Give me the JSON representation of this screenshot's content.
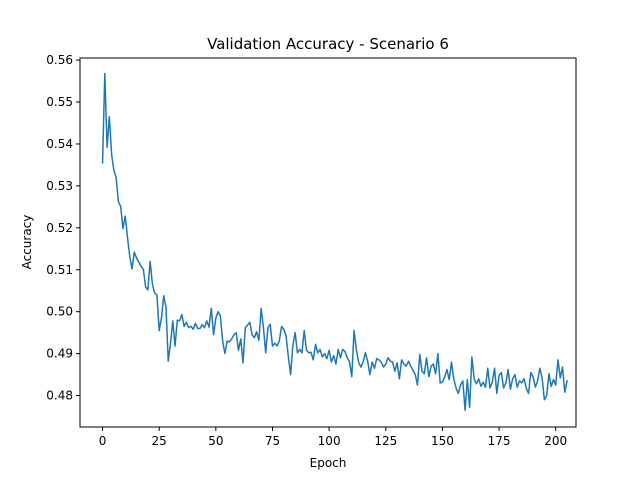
{
  "chart_data": {
    "type": "line",
    "title": "Validation Accuracy - Scenario 6",
    "xlabel": "Epoch",
    "ylabel": "Accuracy",
    "xlim": [
      -9.95,
      208.95
    ],
    "ylim": [
      0.4725,
      0.5605
    ],
    "xticks": [
      0,
      25,
      50,
      75,
      100,
      125,
      150,
      175,
      200
    ],
    "yticks": [
      0.48,
      0.49,
      0.5,
      0.51,
      0.52,
      0.53,
      0.54,
      0.55,
      0.56
    ],
    "ytick_labels": [
      "0.48",
      "0.49",
      "0.50",
      "0.51",
      "0.52",
      "0.53",
      "0.54",
      "0.55",
      "0.56"
    ],
    "grid": false,
    "series": [
      {
        "color": "#1f77b4",
        "x_start": 0,
        "x_step": 1,
        "values": [
          0.5355,
          0.5568,
          0.5392,
          0.5465,
          0.5375,
          0.5338,
          0.532,
          0.5262,
          0.5251,
          0.5198,
          0.5228,
          0.5178,
          0.5132,
          0.5102,
          0.5142,
          0.5128,
          0.5118,
          0.5108,
          0.5101,
          0.5059,
          0.5052,
          0.512,
          0.5066,
          0.5045,
          0.504,
          0.4955,
          0.4985,
          0.5038,
          0.501,
          0.4882,
          0.4925,
          0.4978,
          0.4918,
          0.498,
          0.4978,
          0.4993,
          0.4965,
          0.4975,
          0.4962,
          0.4965,
          0.4958,
          0.4972,
          0.496,
          0.496,
          0.4969,
          0.4962,
          0.4978,
          0.4963,
          0.5008,
          0.4945,
          0.4985,
          0.5,
          0.499,
          0.493,
          0.49,
          0.493,
          0.4928,
          0.4935,
          0.4945,
          0.495,
          0.4908,
          0.4935,
          0.4878,
          0.4962,
          0.4968,
          0.4975,
          0.4945,
          0.4938,
          0.4952,
          0.4932,
          0.5008,
          0.4962,
          0.4902,
          0.4962,
          0.497,
          0.4918,
          0.4925,
          0.4918,
          0.493,
          0.4965,
          0.4958,
          0.4942,
          0.4893,
          0.485,
          0.492,
          0.495,
          0.4902,
          0.491,
          0.4902,
          0.4955,
          0.4908,
          0.4902,
          0.4903,
          0.4885,
          0.4922,
          0.4902,
          0.491,
          0.4892,
          0.49,
          0.4888,
          0.4908,
          0.488,
          0.4895,
          0.4875,
          0.491,
          0.489,
          0.491,
          0.4905,
          0.489,
          0.488,
          0.4845,
          0.4955,
          0.491,
          0.488,
          0.4868,
          0.488,
          0.4902,
          0.4882,
          0.485,
          0.488,
          0.4865,
          0.4888,
          0.4885,
          0.488,
          0.4868,
          0.4875,
          0.489,
          0.4882,
          0.488,
          0.4858,
          0.4878,
          0.484,
          0.4885,
          0.4875,
          0.487,
          0.4882,
          0.487,
          0.486,
          0.485,
          0.4825,
          0.4898,
          0.4858,
          0.4852,
          0.489,
          0.4845,
          0.487,
          0.4875,
          0.4852,
          0.49,
          0.483,
          0.4832,
          0.4845,
          0.4862,
          0.4838,
          0.488,
          0.484,
          0.4818,
          0.4805,
          0.4825,
          0.4835,
          0.4765,
          0.4838,
          0.4772,
          0.4892,
          0.484,
          0.4828,
          0.484,
          0.4822,
          0.4832,
          0.482,
          0.4865,
          0.4818,
          0.4832,
          0.4865,
          0.4805,
          0.4848,
          0.4855,
          0.4818,
          0.483,
          0.4862,
          0.4815,
          0.484,
          0.485,
          0.482,
          0.4835,
          0.483,
          0.484,
          0.4818,
          0.4805,
          0.4855,
          0.4845,
          0.482,
          0.4835,
          0.4865,
          0.4842,
          0.479,
          0.48,
          0.4852,
          0.4822,
          0.4838,
          0.4825,
          0.4885,
          0.4842,
          0.4868,
          0.4808,
          0.4835
        ]
      }
    ]
  }
}
